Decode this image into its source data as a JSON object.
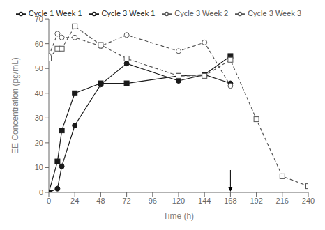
{
  "chart_data": {
    "type": "line",
    "x_label": "Time (h)",
    "y_label": "EE Concentration (pg/mL)",
    "x": [
      0,
      8,
      12,
      24,
      48,
      72,
      120,
      144,
      168,
      192,
      216,
      240
    ],
    "series": [
      {
        "name": "Cycle 1 Week 1",
        "color": "#1a1a1a",
        "marker": "filled_circle",
        "line_style": "solid",
        "values": [
          0,
          1.5,
          10.5,
          27,
          43.5,
          52,
          45,
          47.5,
          44,
          null,
          null,
          null
        ]
      },
      {
        "name": "Cycle 3 Week 1",
        "color": "#1a1a1a",
        "marker": "filled_square",
        "line_style": "solid",
        "values": [
          0,
          12.5,
          25,
          40,
          44,
          44,
          47,
          47.5,
          55,
          null,
          null,
          null
        ]
      },
      {
        "name": "Cycle 3 Week 2",
        "color": "#555555",
        "marker": "open_circle",
        "line_style": "dashed",
        "values": [
          55,
          64,
          62.5,
          62.5,
          59,
          63.5,
          57,
          60.5,
          43,
          null,
          null,
          null
        ]
      },
      {
        "name": "Cycle 3 Week 3",
        "color": "#555555",
        "marker": "open_square",
        "line_style": "dashed",
        "values": [
          54,
          58,
          58,
          67,
          59.5,
          54,
          47,
          47,
          53.5,
          29.5,
          6.5,
          2.5
        ]
      }
    ],
    "xlim": [
      0,
      240
    ],
    "ylim": [
      0,
      70
    ],
    "xticks": [
      0,
      24,
      48,
      72,
      96,
      120,
      144,
      168,
      192,
      216,
      240
    ],
    "yticks": [
      0,
      10,
      20,
      30,
      40,
      50,
      60,
      70
    ],
    "legend": "upper right",
    "annotations": [
      {
        "type": "arrow",
        "x": 168,
        "y_from": 9,
        "y_to": 0.3
      }
    ]
  }
}
